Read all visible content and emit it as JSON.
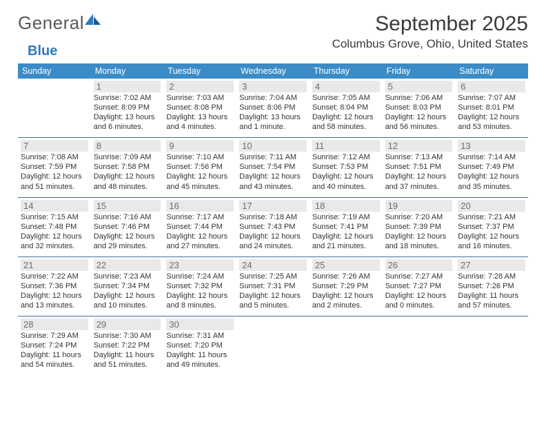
{
  "logo": {
    "word1": "General",
    "word2": "Blue",
    "accent_color": "#2f7bbf",
    "text_color": "#57585a"
  },
  "title": "September 2025",
  "location": "Columbus Grove, Ohio, United States",
  "colors": {
    "header_bg": "#3b8bc7",
    "header_text": "#ffffff",
    "daynum_bg": "#e9e9e9",
    "daynum_text": "#6c6c6c",
    "body_text": "#333333",
    "row_border": "#3b6fa0",
    "page_bg": "#ffffff"
  },
  "fonts": {
    "title_size": 30,
    "location_size": 17,
    "dayheader_size": 12.5,
    "cell_size": 11
  },
  "day_names": [
    "Sunday",
    "Monday",
    "Tuesday",
    "Wednesday",
    "Thursday",
    "Friday",
    "Saturday"
  ],
  "weeks": [
    [
      null,
      {
        "n": "1",
        "sr": "Sunrise: 7:02 AM",
        "ss": "Sunset: 8:09 PM",
        "d1": "Daylight: 13 hours",
        "d2": "and 6 minutes."
      },
      {
        "n": "2",
        "sr": "Sunrise: 7:03 AM",
        "ss": "Sunset: 8:08 PM",
        "d1": "Daylight: 13 hours",
        "d2": "and 4 minutes."
      },
      {
        "n": "3",
        "sr": "Sunrise: 7:04 AM",
        "ss": "Sunset: 8:06 PM",
        "d1": "Daylight: 13 hours",
        "d2": "and 1 minute."
      },
      {
        "n": "4",
        "sr": "Sunrise: 7:05 AM",
        "ss": "Sunset: 8:04 PM",
        "d1": "Daylight: 12 hours",
        "d2": "and 58 minutes."
      },
      {
        "n": "5",
        "sr": "Sunrise: 7:06 AM",
        "ss": "Sunset: 8:03 PM",
        "d1": "Daylight: 12 hours",
        "d2": "and 56 minutes."
      },
      {
        "n": "6",
        "sr": "Sunrise: 7:07 AM",
        "ss": "Sunset: 8:01 PM",
        "d1": "Daylight: 12 hours",
        "d2": "and 53 minutes."
      }
    ],
    [
      {
        "n": "7",
        "sr": "Sunrise: 7:08 AM",
        "ss": "Sunset: 7:59 PM",
        "d1": "Daylight: 12 hours",
        "d2": "and 51 minutes."
      },
      {
        "n": "8",
        "sr": "Sunrise: 7:09 AM",
        "ss": "Sunset: 7:58 PM",
        "d1": "Daylight: 12 hours",
        "d2": "and 48 minutes."
      },
      {
        "n": "9",
        "sr": "Sunrise: 7:10 AM",
        "ss": "Sunset: 7:56 PM",
        "d1": "Daylight: 12 hours",
        "d2": "and 45 minutes."
      },
      {
        "n": "10",
        "sr": "Sunrise: 7:11 AM",
        "ss": "Sunset: 7:54 PM",
        "d1": "Daylight: 12 hours",
        "d2": "and 43 minutes."
      },
      {
        "n": "11",
        "sr": "Sunrise: 7:12 AM",
        "ss": "Sunset: 7:53 PM",
        "d1": "Daylight: 12 hours",
        "d2": "and 40 minutes."
      },
      {
        "n": "12",
        "sr": "Sunrise: 7:13 AM",
        "ss": "Sunset: 7:51 PM",
        "d1": "Daylight: 12 hours",
        "d2": "and 37 minutes."
      },
      {
        "n": "13",
        "sr": "Sunrise: 7:14 AM",
        "ss": "Sunset: 7:49 PM",
        "d1": "Daylight: 12 hours",
        "d2": "and 35 minutes."
      }
    ],
    [
      {
        "n": "14",
        "sr": "Sunrise: 7:15 AM",
        "ss": "Sunset: 7:48 PM",
        "d1": "Daylight: 12 hours",
        "d2": "and 32 minutes."
      },
      {
        "n": "15",
        "sr": "Sunrise: 7:16 AM",
        "ss": "Sunset: 7:46 PM",
        "d1": "Daylight: 12 hours",
        "d2": "and 29 minutes."
      },
      {
        "n": "16",
        "sr": "Sunrise: 7:17 AM",
        "ss": "Sunset: 7:44 PM",
        "d1": "Daylight: 12 hours",
        "d2": "and 27 minutes."
      },
      {
        "n": "17",
        "sr": "Sunrise: 7:18 AM",
        "ss": "Sunset: 7:43 PM",
        "d1": "Daylight: 12 hours",
        "d2": "and 24 minutes."
      },
      {
        "n": "18",
        "sr": "Sunrise: 7:19 AM",
        "ss": "Sunset: 7:41 PM",
        "d1": "Daylight: 12 hours",
        "d2": "and 21 minutes."
      },
      {
        "n": "19",
        "sr": "Sunrise: 7:20 AM",
        "ss": "Sunset: 7:39 PM",
        "d1": "Daylight: 12 hours",
        "d2": "and 18 minutes."
      },
      {
        "n": "20",
        "sr": "Sunrise: 7:21 AM",
        "ss": "Sunset: 7:37 PM",
        "d1": "Daylight: 12 hours",
        "d2": "and 16 minutes."
      }
    ],
    [
      {
        "n": "21",
        "sr": "Sunrise: 7:22 AM",
        "ss": "Sunset: 7:36 PM",
        "d1": "Daylight: 12 hours",
        "d2": "and 13 minutes."
      },
      {
        "n": "22",
        "sr": "Sunrise: 7:23 AM",
        "ss": "Sunset: 7:34 PM",
        "d1": "Daylight: 12 hours",
        "d2": "and 10 minutes."
      },
      {
        "n": "23",
        "sr": "Sunrise: 7:24 AM",
        "ss": "Sunset: 7:32 PM",
        "d1": "Daylight: 12 hours",
        "d2": "and 8 minutes."
      },
      {
        "n": "24",
        "sr": "Sunrise: 7:25 AM",
        "ss": "Sunset: 7:31 PM",
        "d1": "Daylight: 12 hours",
        "d2": "and 5 minutes."
      },
      {
        "n": "25",
        "sr": "Sunrise: 7:26 AM",
        "ss": "Sunset: 7:29 PM",
        "d1": "Daylight: 12 hours",
        "d2": "and 2 minutes."
      },
      {
        "n": "26",
        "sr": "Sunrise: 7:27 AM",
        "ss": "Sunset: 7:27 PM",
        "d1": "Daylight: 12 hours",
        "d2": "and 0 minutes."
      },
      {
        "n": "27",
        "sr": "Sunrise: 7:28 AM",
        "ss": "Sunset: 7:26 PM",
        "d1": "Daylight: 11 hours",
        "d2": "and 57 minutes."
      }
    ],
    [
      {
        "n": "28",
        "sr": "Sunrise: 7:29 AM",
        "ss": "Sunset: 7:24 PM",
        "d1": "Daylight: 11 hours",
        "d2": "and 54 minutes."
      },
      {
        "n": "29",
        "sr": "Sunrise: 7:30 AM",
        "ss": "Sunset: 7:22 PM",
        "d1": "Daylight: 11 hours",
        "d2": "and 51 minutes."
      },
      {
        "n": "30",
        "sr": "Sunrise: 7:31 AM",
        "ss": "Sunset: 7:20 PM",
        "d1": "Daylight: 11 hours",
        "d2": "and 49 minutes."
      },
      null,
      null,
      null,
      null
    ]
  ]
}
